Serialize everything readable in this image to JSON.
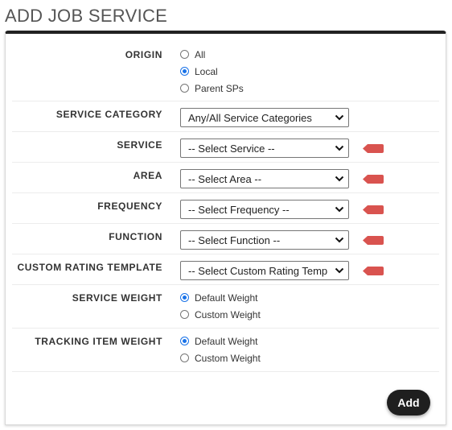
{
  "page": {
    "title": "ADD JOB SERVICE"
  },
  "form": {
    "origin": {
      "label": "ORIGIN",
      "options": [
        "All",
        "Local",
        "Parent SPs"
      ],
      "selected": "Local"
    },
    "service_category": {
      "label": "SERVICE CATEGORY",
      "value": "Any/All Service Categories"
    },
    "service": {
      "label": "SERVICE",
      "value": "-- Select Service --",
      "required": true
    },
    "area": {
      "label": "AREA",
      "value": "-- Select Area --",
      "required": true
    },
    "frequency": {
      "label": "FREQUENCY",
      "value": "-- Select Frequency --",
      "required": true
    },
    "function": {
      "label": "FUNCTION",
      "value": "-- Select Function --",
      "required": true
    },
    "custom_rating_template": {
      "label": "CUSTOM RATING TEMPLATE",
      "value": "-- Select Custom Rating Temp",
      "required": true
    },
    "service_weight": {
      "label": "SERVICE WEIGHT",
      "options": [
        "Default Weight",
        "Custom Weight"
      ],
      "selected": "Default Weight"
    },
    "tracking_item_weight": {
      "label": "TRACKING ITEM WEIGHT",
      "options": [
        "Default Weight",
        "Custom Weight"
      ],
      "selected": "Default Weight"
    }
  },
  "actions": {
    "add_label": "Add"
  },
  "colors": {
    "required_marker": "#d9534f",
    "radio_selected": "#1a73e8",
    "button_bg": "#1f1f1f"
  }
}
